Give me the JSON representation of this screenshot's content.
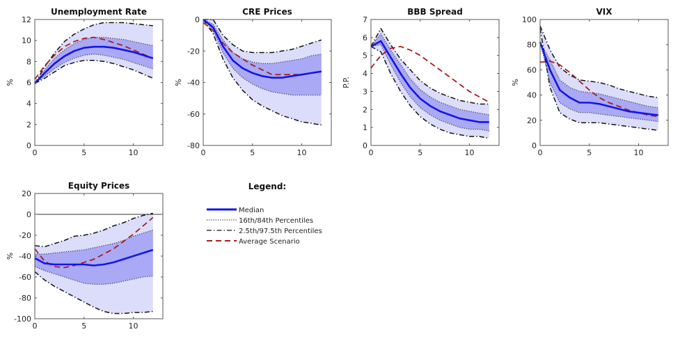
{
  "chart_data": [
    {
      "type": "area",
      "title": "Unemployment Rate",
      "xlabel": "",
      "ylabel": "%",
      "xlim": [
        0,
        13
      ],
      "ylim": [
        0,
        12
      ],
      "xticks": [
        0,
        5,
        10
      ],
      "yticks": [
        0,
        2,
        4,
        6,
        8,
        10,
        12
      ],
      "x": [
        0,
        1,
        2,
        3,
        4,
        5,
        6,
        7,
        8,
        9,
        10,
        11,
        12
      ],
      "series": [
        {
          "name": "Median",
          "values": [
            5.9,
            6.9,
            7.8,
            8.5,
            9.0,
            9.3,
            9.4,
            9.4,
            9.3,
            9.1,
            8.9,
            8.6,
            8.3
          ]
        },
        {
          "name": "16th Percentile",
          "values": [
            5.9,
            6.6,
            7.3,
            7.9,
            8.3,
            8.6,
            8.7,
            8.6,
            8.4,
            8.2,
            7.9,
            7.6,
            7.3
          ]
        },
        {
          "name": "84th Percentile",
          "values": [
            5.9,
            7.2,
            8.3,
            9.1,
            9.7,
            10.1,
            10.3,
            10.3,
            10.2,
            10.1,
            9.9,
            9.7,
            9.5
          ]
        },
        {
          "name": "2.5th Percentile",
          "values": [
            5.9,
            6.4,
            7.0,
            7.6,
            7.9,
            8.1,
            8.1,
            8.0,
            7.8,
            7.5,
            7.2,
            6.8,
            6.4
          ]
        },
        {
          "name": "97.5th Percentile",
          "values": [
            5.9,
            7.5,
            8.8,
            9.9,
            10.6,
            11.1,
            11.5,
            11.7,
            11.7,
            11.7,
            11.6,
            11.5,
            11.4
          ]
        },
        {
          "name": "Average Scenario",
          "values": [
            6.3,
            7.6,
            8.6,
            9.4,
            9.9,
            10.2,
            10.3,
            10.1,
            9.8,
            9.5,
            9.1,
            8.7,
            8.3
          ]
        }
      ]
    },
    {
      "type": "area",
      "title": "CRE Prices",
      "xlabel": "",
      "ylabel": "%",
      "xlim": [
        0,
        13
      ],
      "ylim": [
        -80,
        0
      ],
      "xticks": [
        0,
        5,
        10
      ],
      "yticks": [
        -80,
        -60,
        -40,
        -20,
        0
      ],
      "x": [
        0,
        1,
        2,
        3,
        4,
        5,
        6,
        7,
        8,
        9,
        10,
        11,
        12
      ],
      "series": [
        {
          "name": "Median",
          "values": [
            0,
            -5,
            -17,
            -26,
            -31,
            -34,
            -36,
            -37,
            -37,
            -36,
            -35,
            -34,
            -33
          ]
        },
        {
          "name": "16th Percentile",
          "values": [
            0,
            -7,
            -21,
            -31,
            -37,
            -41,
            -44,
            -46,
            -47,
            -48,
            -48,
            -48,
            -48
          ]
        },
        {
          "name": "84th Percentile",
          "values": [
            0,
            -3,
            -13,
            -21,
            -25,
            -27,
            -28,
            -28,
            -27,
            -26,
            -25,
            -23,
            -22
          ]
        },
        {
          "name": "2.5th Percentile",
          "values": [
            0,
            -9,
            -25,
            -37,
            -45,
            -51,
            -55,
            -58,
            -61,
            -63,
            -65,
            -66,
            -67
          ]
        },
        {
          "name": "97.5th Percentile",
          "values": [
            0,
            0,
            -10,
            -16,
            -20,
            -21,
            -21,
            -21,
            -20,
            -19,
            -17,
            -15,
            -13
          ]
        },
        {
          "name": "Average Scenario",
          "values": [
            -2,
            -7,
            -15,
            -21,
            -25,
            -29,
            -32,
            -35,
            -35,
            -35,
            -35,
            -34,
            -33
          ]
        }
      ]
    },
    {
      "type": "area",
      "title": "BBB Spread",
      "xlabel": "",
      "ylabel": "P.P.",
      "xlim": [
        0,
        13
      ],
      "ylim": [
        0,
        7
      ],
      "xticks": [
        0,
        5,
        10
      ],
      "yticks": [
        0,
        1,
        2,
        3,
        4,
        5,
        6,
        7
      ],
      "x": [
        0,
        1,
        2,
        3,
        4,
        5,
        6,
        7,
        8,
        9,
        10,
        11,
        12
      ],
      "series": [
        {
          "name": "Median",
          "values": [
            5.5,
            5.8,
            4.9,
            4.0,
            3.2,
            2.6,
            2.2,
            1.9,
            1.7,
            1.5,
            1.4,
            1.3,
            1.3
          ]
        },
        {
          "name": "16th Percentile",
          "values": [
            5.5,
            5.6,
            4.5,
            3.5,
            2.7,
            2.1,
            1.7,
            1.4,
            1.2,
            1.0,
            0.9,
            0.9,
            0.8
          ]
        },
        {
          "name": "84th Percentile",
          "values": [
            5.5,
            6.2,
            5.3,
            4.5,
            3.7,
            3.1,
            2.7,
            2.4,
            2.2,
            2.0,
            1.9,
            1.8,
            1.7
          ]
        },
        {
          "name": "2.5th Percentile",
          "values": [
            5.5,
            5.2,
            4.0,
            3.0,
            2.2,
            1.6,
            1.2,
            0.9,
            0.7,
            0.6,
            0.5,
            0.5,
            0.4
          ]
        },
        {
          "name": "97.5th Percentile",
          "values": [
            5.5,
            6.5,
            5.6,
            4.8,
            4.2,
            3.6,
            3.2,
            2.9,
            2.7,
            2.5,
            2.4,
            2.3,
            2.3
          ]
        },
        {
          "name": "Average Scenario",
          "values": [
            4.3,
            5.0,
            5.4,
            5.5,
            5.3,
            5.0,
            4.6,
            4.2,
            3.8,
            3.4,
            3.0,
            2.7,
            2.4
          ]
        }
      ]
    },
    {
      "type": "area",
      "title": "VIX",
      "xlabel": "",
      "ylabel": "%",
      "xlim": [
        0,
        13
      ],
      "ylim": [
        0,
        100
      ],
      "xticks": [
        0,
        5,
        10
      ],
      "yticks": [
        0,
        20,
        40,
        60,
        80,
        100
      ],
      "x": [
        0,
        1,
        2,
        3,
        4,
        5,
        6,
        7,
        8,
        9,
        10,
        11,
        12
      ],
      "series": [
        {
          "name": "Median",
          "values": [
            82,
            60,
            44,
            38,
            34,
            34,
            33,
            31,
            29,
            27,
            26,
            25,
            24
          ]
        },
        {
          "name": "16th Percentile",
          "values": [
            82,
            50,
            34,
            29,
            26,
            26,
            25,
            24,
            23,
            22,
            21,
            20,
            19
          ]
        },
        {
          "name": "84th Percentile",
          "values": [
            82,
            68,
            52,
            46,
            43,
            42,
            41,
            39,
            37,
            35,
            33,
            31,
            30
          ]
        },
        {
          "name": "2.5th Percentile",
          "values": [
            93,
            46,
            26,
            21,
            18,
            18,
            18,
            17,
            16,
            15,
            14,
            13,
            12
          ]
        },
        {
          "name": "97.5th Percentile",
          "values": [
            95,
            76,
            62,
            56,
            52,
            51,
            50,
            48,
            45,
            43,
            41,
            39,
            38
          ]
        },
        {
          "name": "Average Scenario",
          "values": [
            66,
            67,
            64,
            58,
            51,
            44,
            38,
            34,
            31,
            28,
            26,
            24,
            23
          ]
        }
      ]
    },
    {
      "type": "area",
      "title": "Equity Prices",
      "xlabel": "",
      "ylabel": "%",
      "xlim": [
        0,
        13
      ],
      "ylim": [
        -100,
        20
      ],
      "xticks": [
        0,
        5,
        10
      ],
      "yticks": [
        -100,
        -80,
        -60,
        -40,
        -20,
        0,
        20
      ],
      "zero_line": true,
      "x": [
        0,
        1,
        2,
        3,
        4,
        5,
        6,
        7,
        8,
        9,
        10,
        11,
        12
      ],
      "series": [
        {
          "name": "Median",
          "values": [
            -42,
            -47,
            -48,
            -48,
            -48,
            -48,
            -49,
            -48,
            -46,
            -43,
            -40,
            -37,
            -34
          ]
        },
        {
          "name": "16th Percentile",
          "values": [
            -50,
            -54,
            -57,
            -60,
            -63,
            -66,
            -67,
            -67,
            -66,
            -64,
            -62,
            -60,
            -59
          ]
        },
        {
          "name": "84th Percentile",
          "values": [
            -38,
            -38,
            -37,
            -36,
            -35,
            -34,
            -32,
            -30,
            -28,
            -25,
            -21,
            -18,
            -15
          ]
        },
        {
          "name": "2.5th Percentile",
          "values": [
            -55,
            -63,
            -69,
            -74,
            -79,
            -84,
            -89,
            -93,
            -95,
            -95,
            -94,
            -94,
            -93
          ]
        },
        {
          "name": "97.5th Percentile",
          "values": [
            -30,
            -31,
            -28,
            -25,
            -21,
            -20,
            -18,
            -15,
            -11,
            -8,
            -4,
            -1,
            1
          ]
        },
        {
          "name": "Average Scenario",
          "values": [
            -33,
            -45,
            -50,
            -51,
            -49,
            -46,
            -43,
            -38,
            -33,
            -26,
            -19,
            -11,
            -3
          ]
        }
      ]
    }
  ],
  "legend": {
    "title": "Legend:",
    "items": [
      {
        "label": "Median",
        "style": "solid",
        "color": "#1515e6"
      },
      {
        "label": "16th/84th Percentiles",
        "style": "dotted",
        "color": "#333333"
      },
      {
        "label": "2.5th/97.5th Percentiles",
        "style": "dashdot",
        "color": "#111111"
      },
      {
        "label": "Average Scenario",
        "style": "dashed",
        "color": "#a81c1c"
      }
    ]
  },
  "colors": {
    "outer_band": "#dcdcfb",
    "inner_band": "#a9a9f5",
    "median": "#1515e6",
    "average": "#a81c1c"
  }
}
